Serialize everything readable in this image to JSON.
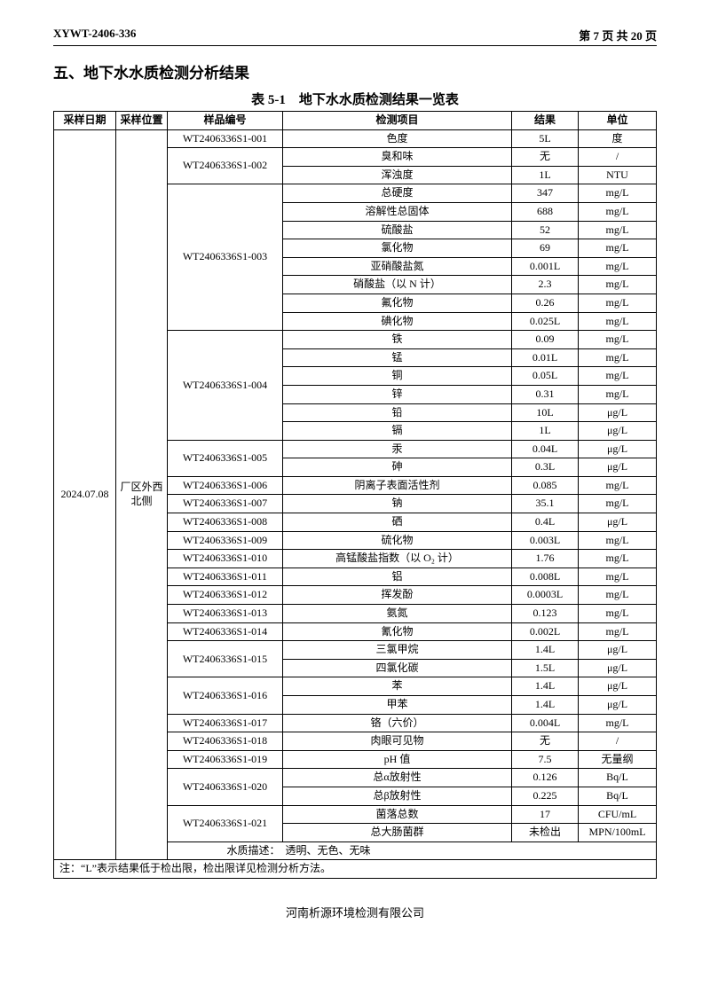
{
  "doc_id": "XYWT-2406-336",
  "page_info": "第 7 页 共 20 页",
  "section_title": "五、地下水水质检测分析结果",
  "table_caption": "表 5-1　地下水水质检测结果一览表",
  "headers": {
    "date": "采样日期",
    "loc": "采样位置",
    "sample": "样品编号",
    "item": "检测项目",
    "result": "结果",
    "unit": "单位"
  },
  "date_value": "2024.07.08",
  "loc_value": "厂区外西北侧",
  "desc_label": "水质描述：",
  "desc_text": "透明、无色、无味",
  "note": "注：“L”表示结果低于检出限，检出限详见检测分析方法。",
  "footer": "河南析源环境检测有限公司",
  "rows": [
    {
      "sample": "WT2406336S1-001",
      "span": 1,
      "item": "色度",
      "result": "5L",
      "unit": "度"
    },
    {
      "sample": "WT2406336S1-002",
      "span": 2,
      "item": "臭和味",
      "result": "无",
      "unit": "/"
    },
    {
      "item": "浑浊度",
      "result": "1L",
      "unit": "NTU"
    },
    {
      "sample": "WT2406336S1-003",
      "span": 8,
      "item": "总硬度",
      "result": "347",
      "unit": "mg/L"
    },
    {
      "item": "溶解性总固体",
      "result": "688",
      "unit": "mg/L"
    },
    {
      "item": "硫酸盐",
      "result": "52",
      "unit": "mg/L"
    },
    {
      "item": "氯化物",
      "result": "69",
      "unit": "mg/L"
    },
    {
      "item": "亚硝酸盐氮",
      "result": "0.001L",
      "unit": "mg/L"
    },
    {
      "item": "硝酸盐（以 N 计）",
      "result": "2.3",
      "unit": "mg/L"
    },
    {
      "item": "氟化物",
      "result": "0.26",
      "unit": "mg/L"
    },
    {
      "item": "碘化物",
      "result": "0.025L",
      "unit": "mg/L"
    },
    {
      "sample": "WT2406336S1-004",
      "span": 6,
      "item": "铁",
      "result": "0.09",
      "unit": "mg/L"
    },
    {
      "item": "锰",
      "result": "0.01L",
      "unit": "mg/L"
    },
    {
      "item": "铜",
      "result": "0.05L",
      "unit": "mg/L"
    },
    {
      "item": "锌",
      "result": "0.31",
      "unit": "mg/L"
    },
    {
      "item": "铅",
      "result": "10L",
      "unit": "μg/L"
    },
    {
      "item": "镉",
      "result": "1L",
      "unit": "μg/L"
    },
    {
      "sample": "WT2406336S1-005",
      "span": 2,
      "item": "汞",
      "result": "0.04L",
      "unit": "μg/L"
    },
    {
      "item": "砷",
      "result": "0.3L",
      "unit": "μg/L"
    },
    {
      "sample": "WT2406336S1-006",
      "span": 1,
      "item": "阴离子表面活性剂",
      "result": "0.085",
      "unit": "mg/L"
    },
    {
      "sample": "WT2406336S1-007",
      "span": 1,
      "item": "钠",
      "result": "35.1",
      "unit": "mg/L"
    },
    {
      "sample": "WT2406336S1-008",
      "span": 1,
      "item": "硒",
      "result": "0.4L",
      "unit": "μg/L"
    },
    {
      "sample": "WT2406336S1-009",
      "span": 1,
      "item": "硫化物",
      "result": "0.003L",
      "unit": "mg/L"
    },
    {
      "sample": "WT2406336S1-010",
      "span": 1,
      "item": "高锰酸盐指数（以 O₂ 计）",
      "result": "1.76",
      "unit": "mg/L"
    },
    {
      "sample": "WT2406336S1-011",
      "span": 1,
      "item": "铝",
      "result": "0.008L",
      "unit": "mg/L"
    },
    {
      "sample": "WT2406336S1-012",
      "span": 1,
      "item": "挥发酚",
      "result": "0.0003L",
      "unit": "mg/L"
    },
    {
      "sample": "WT2406336S1-013",
      "span": 1,
      "item": "氨氮",
      "result": "0.123",
      "unit": "mg/L"
    },
    {
      "sample": "WT2406336S1-014",
      "span": 1,
      "item": "氰化物",
      "result": "0.002L",
      "unit": "mg/L"
    },
    {
      "sample": "WT2406336S1-015",
      "span": 2,
      "item": "三氯甲烷",
      "result": "1.4L",
      "unit": "μg/L"
    },
    {
      "item": "四氯化碳",
      "result": "1.5L",
      "unit": "μg/L"
    },
    {
      "sample": "WT2406336S1-016",
      "span": 2,
      "item": "苯",
      "result": "1.4L",
      "unit": "μg/L"
    },
    {
      "item": "甲苯",
      "result": "1.4L",
      "unit": "μg/L"
    },
    {
      "sample": "WT2406336S1-017",
      "span": 1,
      "item": "铬（六价）",
      "result": "0.004L",
      "unit": "mg/L"
    },
    {
      "sample": "WT2406336S1-018",
      "span": 1,
      "item": "肉眼可见物",
      "result": "无",
      "unit": "/"
    },
    {
      "sample": "WT2406336S1-019",
      "span": 1,
      "item": "pH 值",
      "result": "7.5",
      "unit": "无量纲"
    },
    {
      "sample": "WT2406336S1-020",
      "span": 2,
      "item": "总α放射性",
      "result": "0.126",
      "unit": "Bq/L"
    },
    {
      "item": "总β放射性",
      "result": "0.225",
      "unit": "Bq/L"
    },
    {
      "sample": "WT2406336S1-021",
      "span": 2,
      "item": "菌落总数",
      "result": "17",
      "unit": "CFU/mL"
    },
    {
      "item": "总大肠菌群",
      "result": "未检出",
      "unit": "MPN/100mL"
    }
  ]
}
